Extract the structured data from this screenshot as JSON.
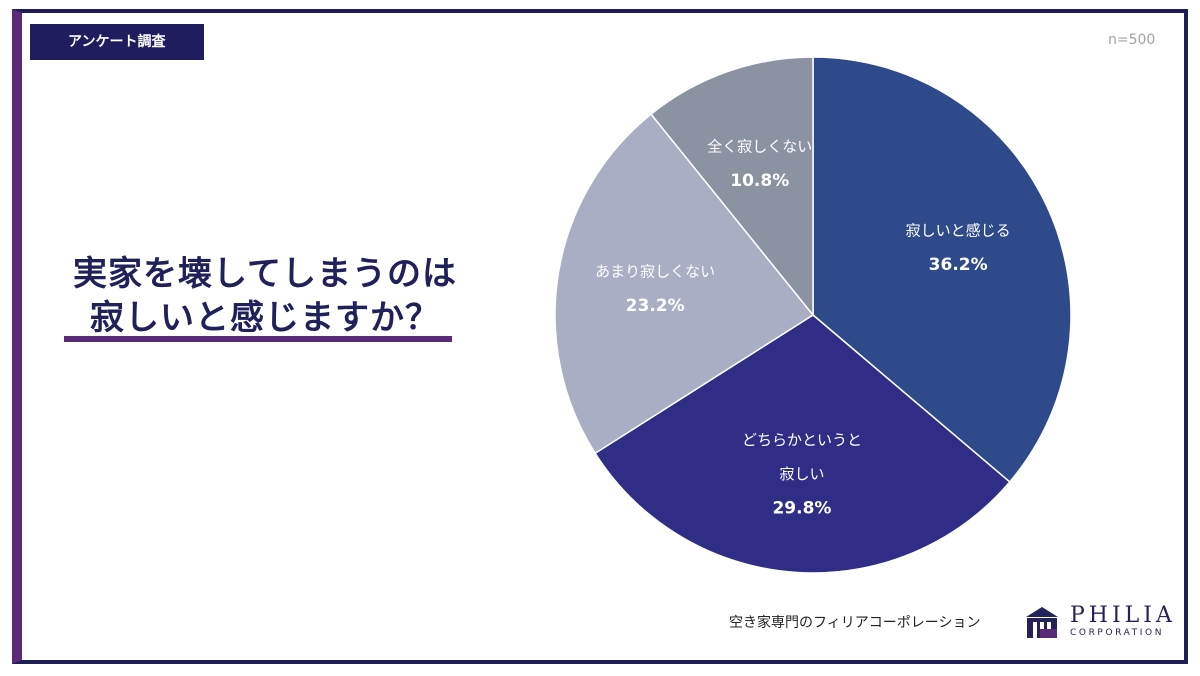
{
  "badge": "アンケート調査",
  "sample_size": "n=500",
  "title_lines": [
    "実家を壊してしまうのは",
    "寂しいと感じますか？"
  ],
  "footer": {
    "company_text": "空き家専門のフィリアコーポレーション",
    "logo_name": "PHILIA",
    "logo_sub": "CORPORATION"
  },
  "chart_data": {
    "type": "pie",
    "start": "12 o'clock, clockwise",
    "slices": [
      {
        "label": [
          "寂しいと感じる"
        ],
        "value": 36.2,
        "value_label": "36.2%",
        "color": "#2f4a8a"
      },
      {
        "label": [
          "どちらかというと",
          "寂しい"
        ],
        "value": 29.8,
        "value_label": "29.8%",
        "color": "#2f2d86"
      },
      {
        "label": [
          "あまり寂しくない"
        ],
        "value": 23.2,
        "value_label": "23.2%",
        "color": "#a9aec4"
      },
      {
        "label": [
          "全く寂しくない"
        ],
        "value": 10.8,
        "value_label": "10.8%",
        "color": "#8b92a2"
      }
    ]
  }
}
